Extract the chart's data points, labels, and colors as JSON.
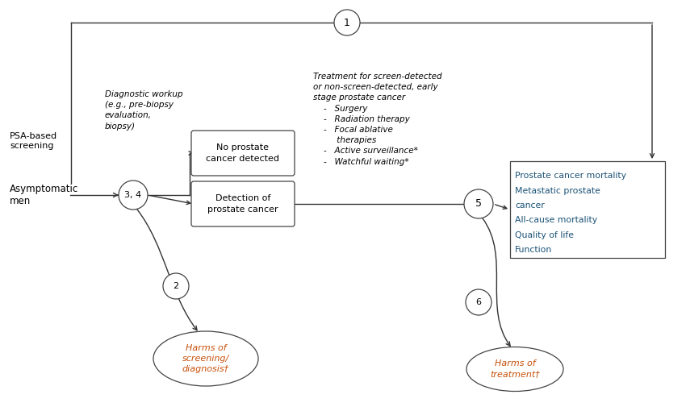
{
  "bg_color": "#ffffff",
  "text_color": "#000000",
  "box_edge_color": "#444444",
  "arrow_color": "#333333",
  "outcomes_color": "#1a5276",
  "harms_color": "#c8500a",
  "population_label": "Asymptomatic\nmen",
  "psa_label": "PSA-based\nscreening",
  "diag_workup_label": "Diagnostic workup\n(e.g., pre-biopsy\nevaluation,\nbiopsy)",
  "treatment_label": "Treatment for screen-detected\nor non-screen-detected, early\nstage prostate cancer\n    -   Surgery\n    -   Radiation therapy\n    -   Focal ablative\n         therapies\n    -   Active surveillance*\n    -   Watchful waiting*",
  "no_cancer_label": "No prostate\ncancer detected",
  "detection_label": "Detection of\nprostate cancer",
  "outcomes_lines": [
    "Prostate cancer mortality",
    "Metastatic prostate",
    "cancer",
    "All-cause mortality",
    "Quality of life",
    "Function"
  ],
  "kq1": "1",
  "kq34": "3, 4",
  "kq5": "5",
  "kq2": "2",
  "kq6": "6",
  "harms_screening": "Harms of\nscreening/\ndiagnosis†",
  "harms_treatment": "Harms of\ntreatment†"
}
